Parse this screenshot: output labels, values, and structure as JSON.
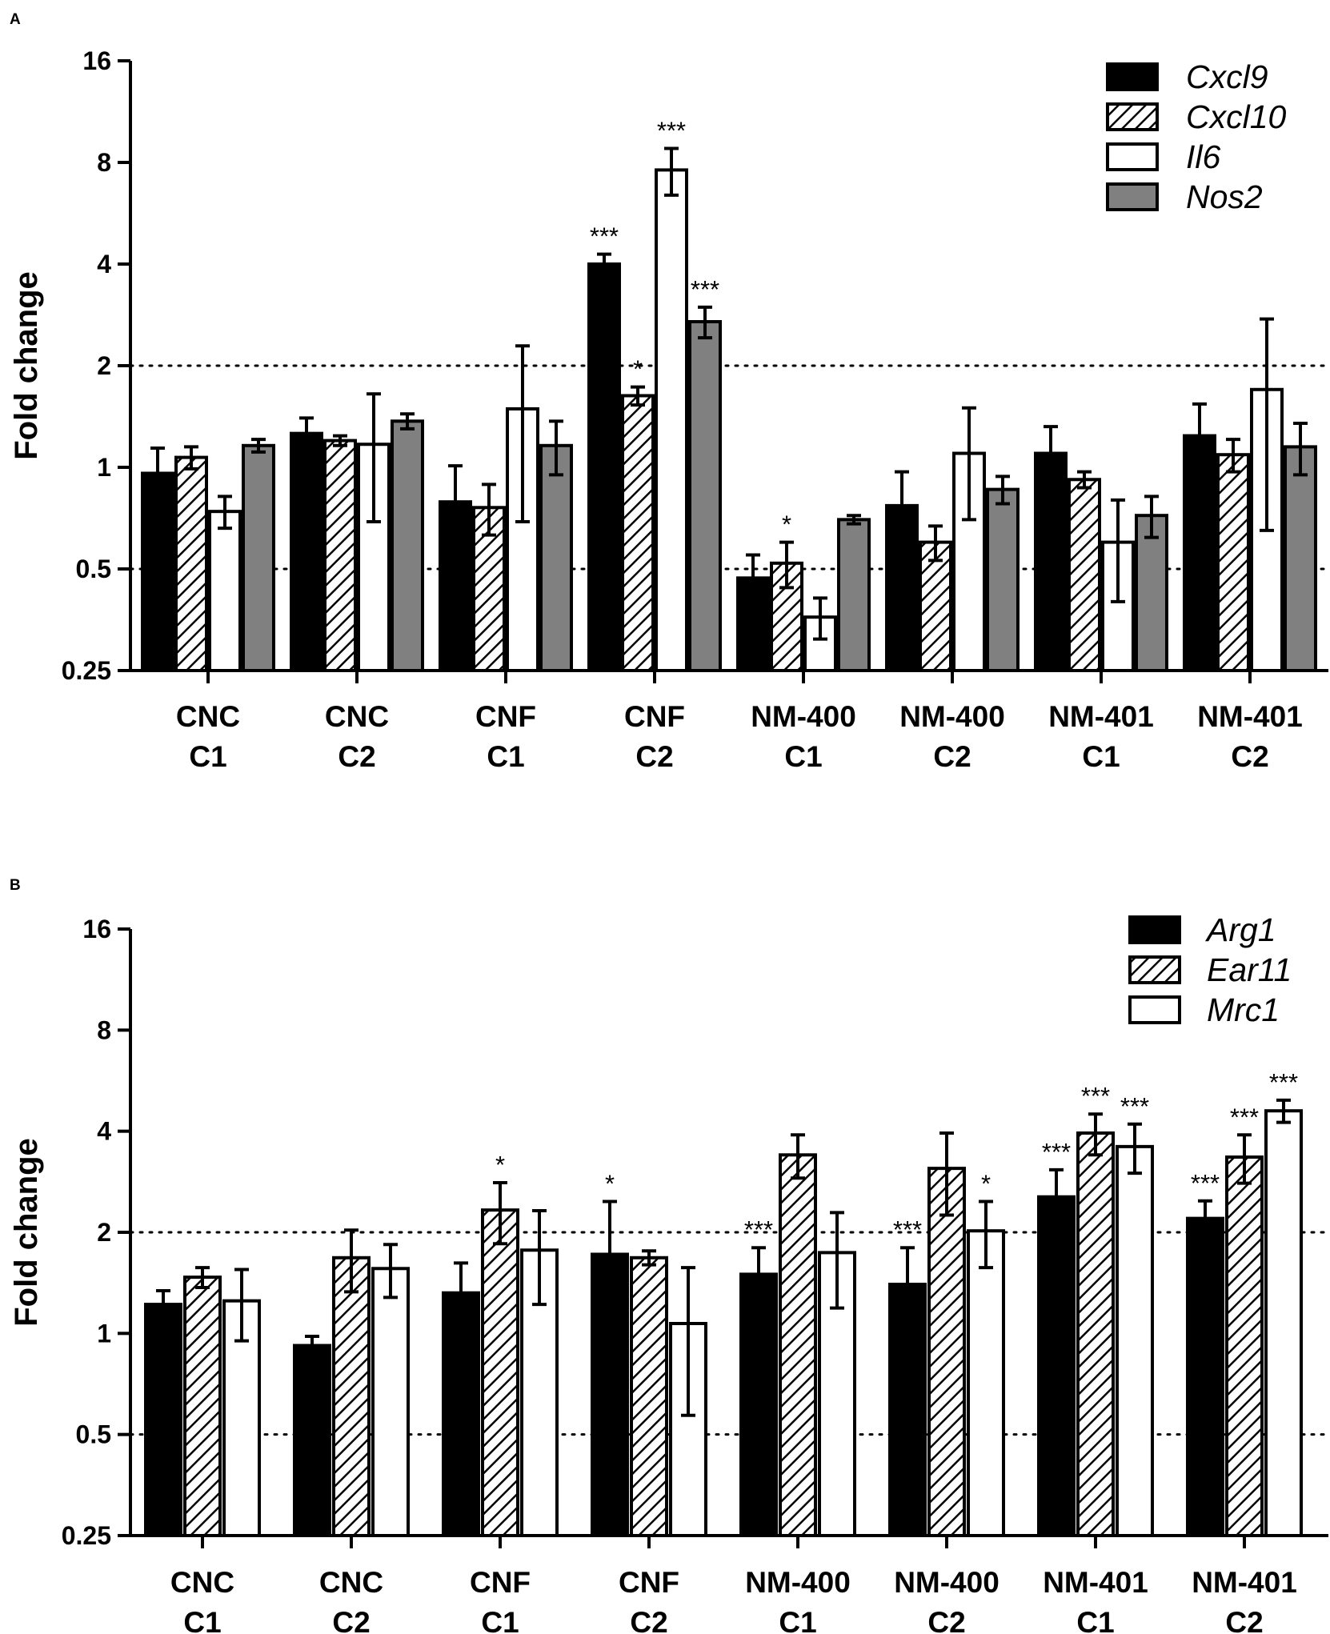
{
  "colors": {
    "axis": "#000000",
    "black_bar": "#000000",
    "white_bar": "#ffffff",
    "gray_bar": "#808080",
    "guide": "#000000"
  },
  "chart_data": [
    {
      "panel": "A",
      "type": "bar",
      "yscale": "log2",
      "ylabel": "Fold change",
      "ylim": [
        0.25,
        16
      ],
      "yticks": [
        0.25,
        0.5,
        1,
        2,
        4,
        8,
        16
      ],
      "ytick_labels": [
        "0.25",
        "0.5",
        "1",
        "2",
        "4",
        "8",
        "16"
      ],
      "guides": [
        0.5,
        2
      ],
      "categories": [
        {
          "line1": "CNC",
          "line2": "C1"
        },
        {
          "line1": "CNC",
          "line2": "C2"
        },
        {
          "line1": "CNF",
          "line2": "C1"
        },
        {
          "line1": "CNF",
          "line2": "C2"
        },
        {
          "line1": "NM-400",
          "line2": "C1"
        },
        {
          "line1": "NM-400",
          "line2": "C2"
        },
        {
          "line1": "NM-401",
          "line2": "C1"
        },
        {
          "line1": "NM-401",
          "line2": "C2"
        }
      ],
      "series": [
        {
          "name": "Cxcl9",
          "fill": "black",
          "values": [
            0.96,
            1.26,
            0.79,
            4.0,
            0.47,
            0.77,
            1.1,
            1.24
          ],
          "err": [
            0.18,
            0.14,
            0.22,
            0.28,
            0.08,
            0.2,
            0.22,
            0.3
          ],
          "sig": [
            "",
            "",
            "",
            "***",
            "",
            "",
            "",
            ""
          ]
        },
        {
          "name": "Cxcl10",
          "fill": "hatch",
          "values": [
            1.07,
            1.2,
            0.76,
            1.63,
            0.52,
            0.6,
            0.92,
            1.09
          ],
          "err": [
            0.08,
            0.04,
            0.13,
            0.1,
            0.08,
            0.07,
            0.05,
            0.12
          ],
          "sig": [
            "",
            "",
            "",
            "*",
            "*",
            "",
            "",
            ""
          ]
        },
        {
          "name": "Il6",
          "fill": "white",
          "values": [
            0.74,
            1.17,
            1.49,
            7.6,
            0.36,
            1.1,
            0.6,
            1.7
          ],
          "err": [
            0.08,
            0.48,
            0.8,
            1.2,
            0.05,
            0.4,
            0.2,
            1.05
          ],
          "sig": [
            "",
            "",
            "",
            "***",
            "",
            "",
            "",
            ""
          ]
        },
        {
          "name": "Nos2",
          "fill": "gray",
          "values": [
            1.16,
            1.37,
            1.16,
            2.7,
            0.7,
            0.86,
            0.72,
            1.15
          ],
          "err": [
            0.05,
            0.07,
            0.21,
            0.28,
            0.02,
            0.08,
            0.1,
            0.2
          ],
          "sig": [
            "",
            "",
            "",
            "***",
            "",
            "",
            "",
            ""
          ]
        }
      ],
      "legend": {
        "position": "top-right",
        "entries": [
          "Cxcl9",
          "Cxcl10",
          "Il6",
          "Nos2"
        ]
      }
    },
    {
      "panel": "B",
      "type": "bar",
      "yscale": "log2",
      "ylabel": "Fold change",
      "ylim": [
        0.25,
        16
      ],
      "yticks": [
        0.25,
        0.5,
        1,
        2,
        4,
        8,
        16
      ],
      "ytick_labels": [
        "0.25",
        "0.5",
        "1",
        "2",
        "4",
        "8",
        "16"
      ],
      "guides": [
        0.5,
        2
      ],
      "categories": [
        {
          "line1": "CNC",
          "line2": "C1"
        },
        {
          "line1": "CNC",
          "line2": "C2"
        },
        {
          "line1": "CNF",
          "line2": "C1"
        },
        {
          "line1": "CNF",
          "line2": "C2"
        },
        {
          "line1": "NM-400",
          "line2": "C1"
        },
        {
          "line1": "NM-400",
          "line2": "C2"
        },
        {
          "line1": "NM-401",
          "line2": "C1"
        },
        {
          "line1": "NM-401",
          "line2": "C2"
        }
      ],
      "series": [
        {
          "name": "Arg1",
          "fill": "black",
          "values": [
            1.22,
            0.92,
            1.32,
            1.72,
            1.5,
            1.4,
            2.55,
            2.2
          ],
          "err": [
            0.12,
            0.06,
            0.3,
            0.75,
            0.3,
            0.4,
            0.52,
            0.28
          ],
          "sig": [
            "",
            "",
            "",
            "*",
            "***",
            "***",
            "***",
            "***"
          ]
        },
        {
          "name": "Ear11",
          "fill": "hatch",
          "values": [
            1.47,
            1.68,
            2.33,
            1.68,
            3.4,
            3.1,
            3.95,
            3.35
          ],
          "err": [
            0.1,
            0.35,
            0.48,
            0.08,
            0.5,
            0.85,
            0.55,
            0.55
          ],
          "sig": [
            "",
            "",
            "*",
            "",
            "",
            "",
            "***",
            "***"
          ]
        },
        {
          "name": "Mrc1",
          "fill": "white",
          "values": [
            1.25,
            1.56,
            1.77,
            1.07,
            1.74,
            2.02,
            3.6,
            4.6
          ],
          "err": [
            0.3,
            0.28,
            0.55,
            0.5,
            0.55,
            0.45,
            0.6,
            0.35
          ],
          "sig": [
            "",
            "",
            "",
            "",
            "",
            "*",
            "***",
            "***"
          ]
        }
      ],
      "legend": {
        "position": "top-right",
        "entries": [
          "Arg1",
          "Ear11",
          "Mrc1"
        ]
      }
    }
  ]
}
